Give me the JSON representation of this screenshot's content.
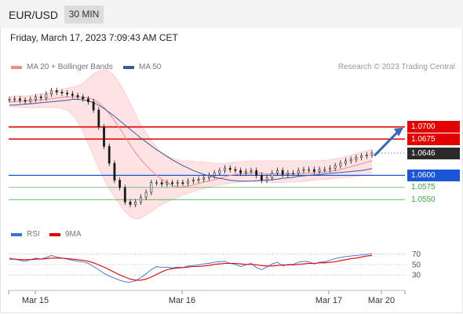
{
  "header": {
    "pair": "EUR/USD",
    "timeframe": "30 MIN"
  },
  "datetime": "Friday, March 17, 2023 7:09:43 AM CET",
  "legend": {
    "bb": "MA 20 + Bollinger Bands",
    "ma50": "MA 50",
    "credit": "Research © 2023 Trading Central",
    "rsi": "RSI",
    "rsi_ma": "9MA"
  },
  "colors": {
    "bb": "#f28a8a",
    "bb_fill": "#fde3e3",
    "ma50": "#3a5aa0",
    "candle": "#1a1a1a",
    "resistance": "#e00000",
    "support": "#1a56d6",
    "target": "#38a838",
    "arrow": "#3a68b4",
    "rsi": "#3c6ed8",
    "rsi_ma": "#e00000"
  },
  "chart_data": {
    "type": "candlestick",
    "x_ticks": [
      "Mar 15",
      "Mar 16",
      "Mar 17",
      "Mar 20"
    ],
    "y_range": [
      1.0505,
      1.08
    ],
    "last_price": "1.0646",
    "levels": [
      {
        "price": "1.0700",
        "kind": "resistance",
        "style": "label"
      },
      {
        "price": "1.0675",
        "kind": "resistance",
        "style": "label"
      },
      {
        "price": "1.0600",
        "kind": "support",
        "style": "label"
      },
      {
        "price": "1.0575",
        "kind": "target",
        "style": "text"
      },
      {
        "price": "1.0550",
        "kind": "target",
        "style": "text"
      }
    ],
    "closes": [
      1.0757,
      1.0758,
      1.0755,
      1.0753,
      1.0757,
      1.0762,
      1.076,
      1.0768,
      1.0775,
      1.0772,
      1.077,
      1.0768,
      1.0765,
      1.0762,
      1.0758,
      1.0752,
      1.0735,
      1.07,
      1.066,
      1.0625,
      1.059,
      1.0575,
      1.0545,
      1.054,
      1.0545,
      1.0555,
      1.0565,
      1.0585,
      1.0585,
      1.0582,
      1.0585,
      1.0583,
      1.0585,
      1.0584,
      1.0588,
      1.059,
      1.0592,
      1.0595,
      1.06,
      1.0605,
      1.061,
      1.0615,
      1.0612,
      1.061,
      1.0605,
      1.0608,
      1.061,
      1.06,
      1.059,
      1.0595,
      1.0605,
      1.061,
      1.0602,
      1.0605,
      1.0605,
      1.061,
      1.0612,
      1.0612,
      1.0608,
      1.0612,
      1.0612,
      1.0615,
      1.062,
      1.0625,
      1.063,
      1.0633,
      1.0637,
      1.064,
      1.0642,
      1.0646
    ],
    "opens": [
      1.0756,
      1.0757,
      1.0758,
      1.0755,
      1.0753,
      1.0757,
      1.0762,
      1.076,
      1.0768,
      1.0775,
      1.0772,
      1.077,
      1.0768,
      1.0765,
      1.0762,
      1.0758,
      1.0752,
      1.0735,
      1.07,
      1.066,
      1.0625,
      1.059,
      1.0575,
      1.0545,
      1.054,
      1.0545,
      1.0555,
      1.0565,
      1.0585,
      1.0585,
      1.0582,
      1.0585,
      1.0583,
      1.0585,
      1.0584,
      1.0588,
      1.059,
      1.0592,
      1.0595,
      1.06,
      1.0605,
      1.061,
      1.0615,
      1.0612,
      1.061,
      1.0605,
      1.0608,
      1.061,
      1.06,
      1.059,
      1.0595,
      1.0605,
      1.061,
      1.0602,
      1.0605,
      1.0605,
      1.061,
      1.0612,
      1.0612,
      1.0608,
      1.0612,
      1.0612,
      1.0615,
      1.062,
      1.0625,
      1.063,
      1.0633,
      1.0637,
      1.064,
      1.0642
    ],
    "ma20": [
      1.0752,
      1.0752,
      1.0753,
      1.0753,
      1.0754,
      1.0755,
      1.0756,
      1.0757,
      1.0758,
      1.076,
      1.0761,
      1.0762,
      1.0762,
      1.0762,
      1.0761,
      1.076,
      1.0757,
      1.075,
      1.074,
      1.0728,
      1.0713,
      1.0697,
      1.068,
      1.0663,
      1.0647,
      1.0633,
      1.0621,
      1.061,
      1.06,
      1.0592,
      1.0585,
      1.0579,
      1.0576,
      1.0576,
      1.0578,
      1.058,
      1.0583,
      1.0586,
      1.0588,
      1.0591,
      1.0594,
      1.0597,
      1.06,
      1.0602,
      1.0603,
      1.0604,
      1.0605,
      1.0605,
      1.0604,
      1.0603,
      1.0603,
      1.0603,
      1.0603,
      1.0603,
      1.0603,
      1.0604,
      1.0604,
      1.0605,
      1.0605,
      1.0606,
      1.0607,
      1.0608,
      1.061,
      1.0612,
      1.0615,
      1.0618,
      1.0621,
      1.0624,
      1.0627,
      1.063
    ],
    "bb_upper": [
      1.0762,
      1.0763,
      1.0763,
      1.0764,
      1.0765,
      1.0767,
      1.0768,
      1.077,
      1.0772,
      1.0775,
      1.0778,
      1.078,
      1.0782,
      1.0785,
      1.079,
      1.08,
      1.081,
      1.0815,
      1.0818,
      1.0815,
      1.0805,
      1.079,
      1.077,
      1.0748,
      1.0725,
      1.0705,
      1.0688,
      1.0672,
      1.0658,
      1.0647,
      1.064,
      1.0635,
      1.0632,
      1.063,
      1.063,
      1.0629,
      1.0628,
      1.0627,
      1.0626,
      1.0625,
      1.0625,
      1.0625,
      1.0626,
      1.0627,
      1.0628,
      1.0629,
      1.063,
      1.063,
      1.063,
      1.063,
      1.063,
      1.063,
      1.063,
      1.063,
      1.063,
      1.063,
      1.063,
      1.063,
      1.063,
      1.063,
      1.0631,
      1.0632,
      1.0634,
      1.0636,
      1.0639,
      1.0642,
      1.0645,
      1.0648,
      1.0651,
      1.0654
    ],
    "bb_lower": [
      1.0742,
      1.0741,
      1.0741,
      1.074,
      1.074,
      1.074,
      1.074,
      1.074,
      1.074,
      1.074,
      1.0738,
      1.0735,
      1.0725,
      1.071,
      1.069,
      1.0665,
      1.064,
      1.0615,
      1.0592,
      1.0572,
      1.0555,
      1.054,
      1.0525,
      1.0515,
      1.051,
      1.0512,
      1.0518,
      1.0525,
      1.0533,
      1.054,
      1.0545,
      1.055,
      1.0555,
      1.056,
      1.0563,
      1.0566,
      1.057,
      1.0573,
      1.0576,
      1.0578,
      1.058,
      1.0582,
      1.0584,
      1.0585,
      1.0586,
      1.0587,
      1.0588,
      1.0588,
      1.0587,
      1.0586,
      1.0585,
      1.0585,
      1.0585,
      1.0586,
      1.0586,
      1.0587,
      1.0588,
      1.0589,
      1.059,
      1.0591,
      1.0592,
      1.0593,
      1.0594,
      1.0595,
      1.0596,
      1.0597,
      1.0598,
      1.0599,
      1.06,
      1.06
    ],
    "ma50": [
      1.0745,
      1.0745,
      1.0746,
      1.0747,
      1.0748,
      1.0749,
      1.075,
      1.0751,
      1.0752,
      1.0753,
      1.0754,
      1.0755,
      1.0757,
      1.0757,
      1.0756,
      1.0754,
      1.075,
      1.0745,
      1.0738,
      1.073,
      1.0722,
      1.0713,
      1.0704,
      1.0695,
      1.0686,
      1.0677,
      1.0669,
      1.0661,
      1.0653,
      1.0646,
      1.0639,
      1.0632,
      1.0626,
      1.062,
      1.0615,
      1.061,
      1.0606,
      1.0602,
      1.0599,
      1.0596,
      1.0594,
      1.0592,
      1.059,
      1.0589,
      1.0588,
      1.0588,
      1.0588,
      1.0589,
      1.059,
      1.059,
      1.0591,
      1.0592,
      1.0594,
      1.0595,
      1.0596,
      1.0598,
      1.0599,
      1.06,
      1.0601,
      1.0602,
      1.0603,
      1.0604,
      1.0605,
      1.0606,
      1.0607,
      1.0608,
      1.0609,
      1.061,
      1.0612,
      1.0614
    ],
    "rsi_ticks": [
      70,
      50,
      30
    ],
    "rsi_range": [
      5,
      90
    ],
    "rsi": [
      62,
      60,
      58,
      56,
      59,
      62,
      60,
      63,
      67,
      64,
      62,
      60,
      58,
      56,
      55,
      52,
      46,
      40,
      33,
      28,
      24,
      20,
      17,
      16,
      19,
      25,
      32,
      40,
      46,
      44,
      45,
      43,
      45,
      44,
      47,
      48,
      49,
      51,
      52,
      54,
      55,
      56,
      52,
      50,
      46,
      49,
      52,
      44,
      40,
      45,
      51,
      54,
      47,
      50,
      50,
      54,
      56,
      55,
      51,
      54,
      55,
      58,
      61,
      63,
      65,
      66,
      67,
      68,
      69,
      70
    ],
    "rsi_ma": [
      60,
      60,
      59,
      59,
      59,
      60,
      60,
      61,
      62,
      62,
      62,
      61,
      60,
      59,
      58,
      56,
      53,
      49,
      45,
      40,
      35,
      30,
      26,
      22,
      20,
      20,
      22,
      26,
      31,
      36,
      40,
      42,
      43,
      44,
      45,
      46,
      46,
      47,
      48,
      50,
      51,
      52,
      52,
      52,
      51,
      50,
      50,
      49,
      48,
      47,
      47,
      48,
      49,
      49,
      49,
      50,
      51,
      52,
      52,
      53,
      53,
      54,
      55,
      57,
      59,
      61,
      62,
      64,
      66,
      67
    ]
  }
}
